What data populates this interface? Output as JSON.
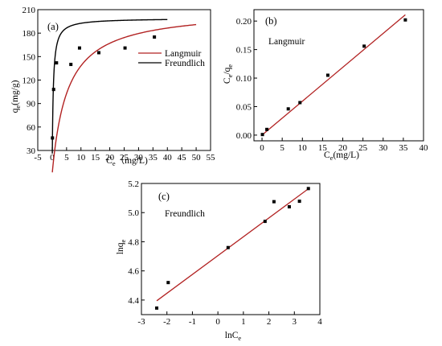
{
  "chart_data": [
    {
      "panel_label": "(a)",
      "type": "scatter",
      "xlabel_main": "C",
      "xlabel_sub": "e",
      "xlabel_unit": "（mg/L)",
      "ylabel_main": "q",
      "ylabel_sub": "e",
      "ylabel_unit": "(mg/g)",
      "xlim": [
        -5,
        55
      ],
      "ylim": [
        30,
        210
      ],
      "xticks": [
        -5,
        0,
        5,
        10,
        15,
        20,
        25,
        30,
        35,
        40,
        45,
        50,
        55
      ],
      "yticks": [
        30,
        60,
        90,
        120,
        150,
        180,
        210
      ],
      "points": [
        {
          "x": 0.1,
          "y": 46
        },
        {
          "x": 0.5,
          "y": 108
        },
        {
          "x": 1.5,
          "y": 142
        },
        {
          "x": 6.5,
          "y": 140
        },
        {
          "x": 9.5,
          "y": 161
        },
        {
          "x": 16.2,
          "y": 155
        },
        {
          "x": 25.3,
          "y": 161
        },
        {
          "x": 35.5,
          "y": 175
        }
      ],
      "series": [
        {
          "name": "Langmuir",
          "color": "#b22222",
          "model": "langmuir",
          "qmax": 211,
          "KL": 0.19,
          "xrange": [
            0.05,
            50
          ]
        },
        {
          "name": "Freundlich",
          "color": "#000000",
          "model": "langmuir",
          "qmax": 199,
          "KL": 3.0,
          "xrange": [
            0.05,
            40
          ]
        }
      ],
      "legend_position": "right"
    },
    {
      "panel_label": "(b)",
      "type": "scatter",
      "annotation": "Langmuir",
      "xlabel_main": "C",
      "xlabel_sub": "e",
      "xlabel_unit": "(mg/L)",
      "ylabel_main1": "C",
      "ylabel_sub1": "e",
      "ylabel_slash": "/q",
      "ylabel_sub2": "e",
      "xlim": [
        -2,
        40
      ],
      "ylim": [
        -0.01,
        0.22
      ],
      "xticks": [
        0,
        5,
        10,
        15,
        20,
        25,
        30,
        35,
        40
      ],
      "yticks": [
        0.0,
        0.05,
        0.1,
        0.15,
        0.2
      ],
      "ytick_labels": [
        "0.00",
        "0.05",
        "0.10",
        "0.15",
        "0.20"
      ],
      "points": [
        {
          "x": 0.1,
          "y": 0.001
        },
        {
          "x": 1.2,
          "y": 0.01
        },
        {
          "x": 6.5,
          "y": 0.046
        },
        {
          "x": 9.4,
          "y": 0.057
        },
        {
          "x": 16.3,
          "y": 0.105
        },
        {
          "x": 25.3,
          "y": 0.156
        },
        {
          "x": 35.5,
          "y": 0.202
        }
      ],
      "fit": {
        "color": "#b22222",
        "x0": 0,
        "y0": 0.0,
        "x1": 35.5,
        "y1": 0.211
      }
    },
    {
      "panel_label": "(c)",
      "type": "scatter",
      "annotation": "Freundlich",
      "xlabel_main": "lnC",
      "xlabel_sub": "e",
      "ylabel_main": "lnq",
      "ylabel_sub": "e",
      "xlim": [
        -3,
        4
      ],
      "ylim": [
        4.3,
        5.2
      ],
      "xticks": [
        -3,
        -2,
        -1,
        0,
        1,
        2,
        3,
        4
      ],
      "yticks": [
        4.4,
        4.6,
        4.8,
        5.0,
        5.2
      ],
      "ytick_labels": [
        "4.4",
        "4.6",
        "4.8",
        "5.0",
        "5.2"
      ],
      "points": [
        {
          "x": -2.4,
          "y": 4.345
        },
        {
          "x": -1.95,
          "y": 4.52
        },
        {
          "x": 0.4,
          "y": 4.76
        },
        {
          "x": 1.85,
          "y": 4.94
        },
        {
          "x": 2.2,
          "y": 5.075
        },
        {
          "x": 2.8,
          "y": 5.04
        },
        {
          "x": 3.2,
          "y": 5.078
        },
        {
          "x": 3.55,
          "y": 5.165
        }
      ],
      "fit": {
        "color": "#b22222",
        "x0": -2.4,
        "y0": 4.395,
        "x1": 3.6,
        "y1": 5.17
      }
    }
  ]
}
